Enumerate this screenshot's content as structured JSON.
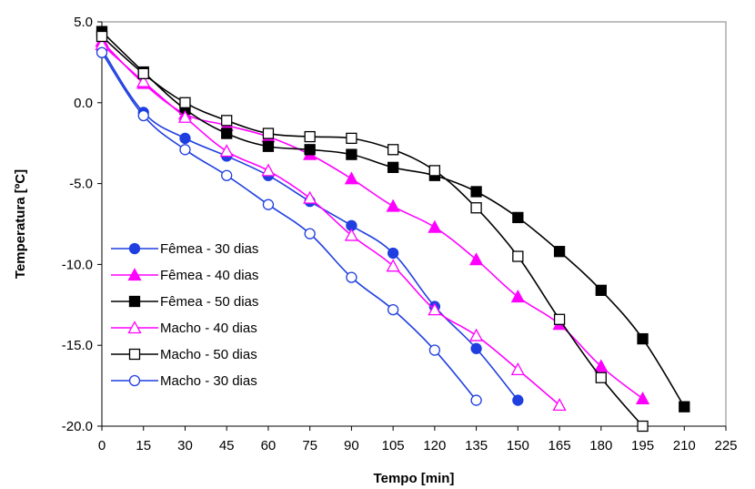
{
  "chart_data": {
    "type": "line",
    "title": "",
    "xlabel": "Tempo [min]",
    "ylabel": "Temperatura [ºC]",
    "xlim": [
      0,
      225
    ],
    "ylim": [
      -20,
      5
    ],
    "x_ticks": [
      "0",
      "15",
      "30",
      "45",
      "60",
      "75",
      "90",
      "105",
      "120",
      "135",
      "150",
      "165",
      "180",
      "195",
      "210",
      "225"
    ],
    "y_ticks": [
      "5.0",
      "0.0",
      "-5.0",
      "-10.0",
      "-15.0",
      "-20.0"
    ],
    "grid": false,
    "legend_position": "lower-left",
    "series": [
      {
        "name": "Fêmea - 30 dias",
        "color": "#1f3fe0",
        "marker": "circle",
        "filled": true,
        "x": [
          0,
          15,
          30,
          45,
          60,
          75,
          90,
          105,
          120,
          135,
          150
        ],
        "y": [
          3.3,
          -0.6,
          -2.2,
          -3.3,
          -4.5,
          -6.1,
          -7.6,
          -9.3,
          -12.6,
          -15.2,
          -18.4
        ]
      },
      {
        "name": "Fêmea - 40 dias",
        "color": "#ff00ff",
        "marker": "triangle",
        "filled": true,
        "x": [
          0,
          15,
          30,
          45,
          60,
          75,
          90,
          105,
          120,
          135,
          150,
          165,
          180,
          195
        ],
        "y": [
          3.8,
          1.2,
          -0.7,
          -1.4,
          -2.1,
          -3.2,
          -4.7,
          -6.4,
          -7.7,
          -9.7,
          -12.0,
          -13.7,
          -16.3,
          -18.3
        ]
      },
      {
        "name": "Fêmea - 50 dias",
        "color": "#000000",
        "marker": "square",
        "filled": true,
        "x": [
          0,
          15,
          30,
          45,
          60,
          75,
          90,
          105,
          120,
          135,
          150,
          165,
          180,
          195,
          210
        ],
        "y": [
          4.4,
          1.9,
          -0.4,
          -1.9,
          -2.7,
          -2.9,
          -3.2,
          -4.0,
          -4.5,
          -5.5,
          -7.1,
          -9.2,
          -11.6,
          -14.6,
          -18.8
        ]
      },
      {
        "name": "Macho - 40 dias",
        "color": "#ff00ff",
        "marker": "triangle",
        "filled": false,
        "x": [
          0,
          15,
          30,
          45,
          60,
          75,
          90,
          105,
          120,
          135,
          150,
          165
        ],
        "y": [
          3.6,
          1.3,
          -0.9,
          -3.0,
          -4.2,
          -5.9,
          -8.2,
          -10.1,
          -12.8,
          -14.4,
          -16.5,
          -18.7
        ]
      },
      {
        "name": "Macho - 50 dias",
        "color": "#000000",
        "marker": "square",
        "filled": false,
        "x": [
          0,
          15,
          30,
          45,
          60,
          75,
          90,
          105,
          120,
          135,
          150,
          165,
          180,
          195
        ],
        "y": [
          4.1,
          1.8,
          0.0,
          -1.1,
          -1.9,
          -2.1,
          -2.2,
          -2.9,
          -4.2,
          -6.5,
          -9.5,
          -13.4,
          -17.0,
          -20.0
        ]
      },
      {
        "name": "Macho - 30 dias",
        "color": "#1f3fe0",
        "marker": "circle",
        "filled": false,
        "x": [
          0,
          15,
          30,
          45,
          60,
          75,
          90,
          105,
          120,
          135
        ],
        "y": [
          3.1,
          -0.8,
          -2.9,
          -4.5,
          -6.3,
          -8.1,
          -10.8,
          -12.8,
          -15.3,
          -18.4
        ]
      }
    ]
  }
}
